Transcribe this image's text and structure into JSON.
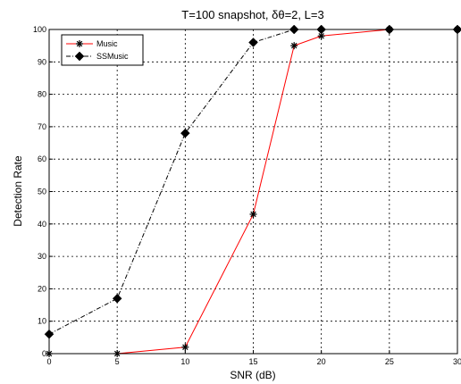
{
  "chart_data": {
    "type": "line",
    "title": "T=100 snapshot, δθ=2,  L=3",
    "xlabel": "SNR (dB)",
    "ylabel": "Detection Rate",
    "xlim": [
      0,
      30
    ],
    "ylim": [
      0,
      100
    ],
    "xticks": [
      0,
      5,
      10,
      15,
      20,
      25,
      30
    ],
    "yticks": [
      0,
      10,
      20,
      30,
      40,
      50,
      60,
      70,
      80,
      90,
      100
    ],
    "grid": true,
    "legend_position": "top-left",
    "series": [
      {
        "name": "Music",
        "color": "#ff0000",
        "line_style": "solid",
        "marker": "star",
        "x": [
          0,
          5,
          10,
          15,
          18,
          20,
          25,
          30
        ],
        "y": [
          0,
          0,
          2,
          43,
          95,
          98,
          100,
          100
        ]
      },
      {
        "name": "SSMusic",
        "color": "#000000",
        "line_style": "dash-dot",
        "marker": "diamond",
        "x": [
          0,
          5,
          10,
          15,
          18,
          20,
          25,
          30
        ],
        "y": [
          6,
          17,
          68,
          96,
          100,
          100,
          100,
          100
        ]
      }
    ]
  }
}
